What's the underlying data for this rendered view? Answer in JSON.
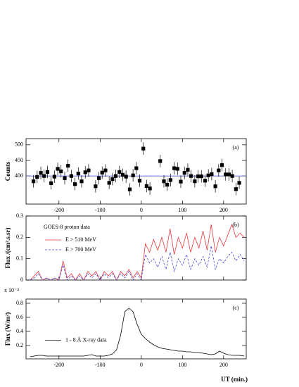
{
  "chart_data": [
    {
      "type": "scatter",
      "ylabel": "Counts",
      "panel_label": "(a)",
      "xlim": [
        -280,
        255
      ],
      "xticks": [
        -200,
        -100,
        0,
        100,
        200
      ],
      "xtick_labels": true,
      "ylim": [
        310,
        520
      ],
      "yticks": [
        400,
        450,
        500
      ],
      "hline": 400,
      "hline_color": "#3344cc",
      "series": [
        {
          "color": "#000000",
          "x": [
            -262,
            -253,
            -244,
            -236,
            -228,
            -219,
            -211,
            -203,
            -195,
            -186,
            -178,
            -170,
            -161,
            -153,
            -145,
            -136,
            -128,
            -111,
            -103,
            -95,
            -87,
            -78,
            -70,
            -62,
            -53,
            -45,
            -37,
            -28,
            -20,
            -12,
            -4,
            5,
            13,
            21,
            46,
            55,
            63,
            71,
            80,
            88,
            96,
            105,
            113,
            121,
            130,
            138,
            146,
            155,
            163,
            171,
            180,
            188,
            196,
            205,
            213,
            221,
            230,
            238
          ],
          "values": [
            383,
            397,
            410,
            400,
            413,
            377,
            398,
            423,
            415,
            393,
            433,
            400,
            374,
            408,
            383,
            412,
            418,
            367,
            393,
            411,
            418,
            378,
            390,
            400,
            413,
            404,
            398,
            357,
            402,
            425,
            385,
            488,
            368,
            360,
            448,
            383,
            372,
            387,
            425,
            423,
            382,
            410,
            420,
            400,
            383,
            399,
            399,
            385,
            402,
            406,
            367,
            418,
            435,
            405,
            405,
            400,
            358,
            378
          ],
          "errors": [
            20,
            20,
            20,
            20,
            20,
            20,
            20,
            20,
            20,
            20,
            20,
            20,
            20,
            20,
            20,
            20,
            20,
            20,
            20,
            20,
            20,
            20,
            20,
            20,
            20,
            20,
            20,
            20,
            20,
            20,
            20,
            20,
            20,
            20,
            20,
            20,
            20,
            20,
            20,
            20,
            20,
            20,
            20,
            20,
            20,
            20,
            20,
            20,
            20,
            20,
            20,
            20,
            20,
            20,
            20,
            20,
            20,
            20
          ]
        }
      ]
    },
    {
      "type": "line",
      "ylabel": "Flux /(cm².s.sr)",
      "panel_label": "(b)",
      "legend_title": "GOES-8 proton data",
      "legend": "upper left",
      "xlim": [
        -280,
        255
      ],
      "xticks": [
        -200,
        -100,
        0,
        100,
        200
      ],
      "xtick_labels": false,
      "ylim": [
        0,
        0.3
      ],
      "yticks": [
        0,
        0.1,
        0.2,
        0.3
      ],
      "x": [
        -270,
        -260,
        -250,
        -240,
        -230,
        -220,
        -210,
        -200,
        -190,
        -180,
        -170,
        -160,
        -150,
        -140,
        -130,
        -120,
        -110,
        -100,
        -90,
        -80,
        -70,
        -60,
        -50,
        -40,
        -30,
        -20,
        -10,
        0,
        10,
        20,
        30,
        40,
        50,
        60,
        70,
        80,
        90,
        100,
        110,
        120,
        130,
        140,
        150,
        160,
        170,
        180,
        190,
        200,
        210,
        220,
        230,
        240,
        250
      ],
      "series": [
        {
          "name": "E > 510 MeV",
          "color": "#e8383d",
          "dash": false,
          "values": [
            0,
            0.02,
            0.04,
            0,
            0.01,
            0,
            0.01,
            0,
            0.09,
            0.01,
            0.03,
            0,
            0.03,
            0,
            0.04,
            0.02,
            0.04,
            0,
            0.04,
            0.02,
            0.04,
            0,
            0.04,
            0.02,
            0.05,
            0.01,
            0.04,
            0.01,
            0.17,
            0.13,
            0.19,
            0.14,
            0.2,
            0.13,
            0.24,
            0.12,
            0.2,
            0.15,
            0.22,
            0.13,
            0.2,
            0.15,
            0.23,
            0.14,
            0.26,
            0.13,
            0.2,
            0.16,
            0.21,
            0.26,
            0.2,
            0.22,
            0.2
          ]
        },
        {
          "name": "E > 700 MeV",
          "color": "#4444dd",
          "dash": true,
          "values": [
            0,
            0.01,
            0.03,
            0,
            0.01,
            0,
            0.01,
            0,
            0.07,
            0,
            0.02,
            0,
            0.02,
            0,
            0.03,
            0.01,
            0.03,
            0,
            0.03,
            0.01,
            0.03,
            0,
            0.03,
            0.01,
            0.04,
            0,
            0.03,
            0,
            0.12,
            0.08,
            0.1,
            0.06,
            0.11,
            0.05,
            0.13,
            0.04,
            0.1,
            0.07,
            0.12,
            0.05,
            0.1,
            0.07,
            0.11,
            0.06,
            0.16,
            0.05,
            0.1,
            0.08,
            0.11,
            0.13,
            0.09,
            0.12,
            0.09
          ]
        }
      ]
    },
    {
      "type": "line",
      "ylabel": "Flux (W/m²)",
      "y_multiplier": "x 10⁻⁴",
      "panel_label": "(c)",
      "legend": "center left",
      "xlabel": "UT (min.)",
      "xlim": [
        -280,
        255
      ],
      "xticks": [
        -200,
        -100,
        0,
        100,
        200
      ],
      "xtick_labels": true,
      "ylim": [
        0.01,
        0.86
      ],
      "yticks": [
        0.2,
        0.4,
        0.6,
        0.8
      ],
      "x": [
        -270,
        -260,
        -250,
        -240,
        -230,
        -220,
        -210,
        -200,
        -190,
        -180,
        -170,
        -160,
        -150,
        -140,
        -130,
        -120,
        -110,
        -100,
        -90,
        -80,
        -70,
        -60,
        -50,
        -40,
        -30,
        -20,
        -10,
        0,
        10,
        20,
        30,
        40,
        50,
        60,
        70,
        80,
        90,
        100,
        110,
        120,
        130,
        140,
        150,
        160,
        170,
        180,
        190,
        200,
        210,
        220,
        230,
        240,
        250
      ],
      "series": [
        {
          "name": "1 - 8 Å X-ray data",
          "color": "#000000",
          "dash": false,
          "values": [
            0.04,
            0.05,
            0.06,
            0.06,
            0.05,
            0.05,
            0.05,
            0.05,
            0.05,
            0.05,
            0.05,
            0.05,
            0.05,
            0.05,
            0.06,
            0.07,
            0.05,
            0.05,
            0.05,
            0.06,
            0.08,
            0.14,
            0.35,
            0.68,
            0.73,
            0.68,
            0.5,
            0.36,
            0.3,
            0.25,
            0.21,
            0.18,
            0.16,
            0.15,
            0.14,
            0.13,
            0.12,
            0.12,
            0.11,
            0.11,
            0.1,
            0.1,
            0.09,
            0.08,
            0.07,
            0.08,
            0.12,
            0.09,
            0.07,
            0.06,
            0.06,
            0.06,
            0.05
          ]
        }
      ]
    }
  ]
}
